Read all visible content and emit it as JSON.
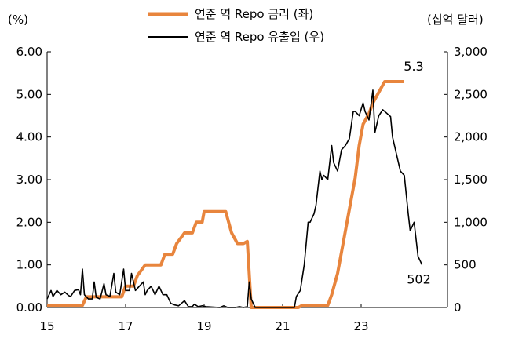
{
  "chart_data": {
    "type": "line",
    "title": "",
    "left_unit": "(%)",
    "right_unit": "(십억 달러)",
    "xlabel": "",
    "ylabel": "",
    "x_tick_labels": [
      "15",
      "17",
      "19",
      "21",
      "23"
    ],
    "x_tick_values": [
      2015,
      2017,
      2019,
      2021,
      2023
    ],
    "xlim": [
      2015,
      2025.2
    ],
    "y_left": {
      "lim": [
        0,
        6
      ],
      "tick_values": [
        0,
        1,
        2,
        3,
        4,
        5,
        6
      ],
      "tick_labels": [
        "0.00",
        "1.00",
        "2.00",
        "3.00",
        "4.00",
        "5.00",
        "6.00"
      ]
    },
    "y_right": {
      "lim": [
        0,
        3000
      ],
      "tick_values": [
        0,
        500,
        1000,
        1500,
        2000,
        2500,
        3000
      ],
      "tick_labels": [
        "0",
        "500",
        "1,000",
        "1,500",
        "2,000",
        "2,500",
        "3,000"
      ]
    },
    "grid": false,
    "legend_position": "top-center",
    "series": [
      {
        "name": "연준 역 Repo 금리 (좌)",
        "axis": "left",
        "color": "#e8853d",
        "points": [
          [
            2015.0,
            0.05
          ],
          [
            2015.9,
            0.05
          ],
          [
            2016.0,
            0.25
          ],
          [
            2016.9,
            0.25
          ],
          [
            2017.0,
            0.5
          ],
          [
            2017.2,
            0.5
          ],
          [
            2017.3,
            0.75
          ],
          [
            2017.5,
            1.0
          ],
          [
            2017.9,
            1.0
          ],
          [
            2018.0,
            1.25
          ],
          [
            2018.2,
            1.25
          ],
          [
            2018.3,
            1.5
          ],
          [
            2018.5,
            1.75
          ],
          [
            2018.7,
            1.75
          ],
          [
            2018.8,
            2.0
          ],
          [
            2018.95,
            2.0
          ],
          [
            2019.0,
            2.25
          ],
          [
            2019.55,
            2.25
          ],
          [
            2019.7,
            1.75
          ],
          [
            2019.85,
            1.5
          ],
          [
            2020.0,
            1.5
          ],
          [
            2020.1,
            1.55
          ],
          [
            2020.2,
            0.0
          ],
          [
            2021.4,
            0.0
          ],
          [
            2021.5,
            0.05
          ],
          [
            2022.15,
            0.05
          ],
          [
            2022.25,
            0.3
          ],
          [
            2022.4,
            0.8
          ],
          [
            2022.55,
            1.55
          ],
          [
            2022.7,
            2.3
          ],
          [
            2022.85,
            3.05
          ],
          [
            2022.95,
            3.8
          ],
          [
            2023.05,
            4.3
          ],
          [
            2023.2,
            4.55
          ],
          [
            2023.3,
            4.8
          ],
          [
            2023.45,
            5.05
          ],
          [
            2023.6,
            5.3
          ],
          [
            2024.1,
            5.3
          ]
        ],
        "annotation": "5.3"
      },
      {
        "name": "연준 역 Repo 유출입 (우)",
        "axis": "right",
        "color": "#000000",
        "points": [
          [
            2015.0,
            100
          ],
          [
            2015.1,
            200
          ],
          [
            2015.15,
            130
          ],
          [
            2015.25,
            200
          ],
          [
            2015.35,
            150
          ],
          [
            2015.45,
            180
          ],
          [
            2015.55,
            140
          ],
          [
            2015.6,
            130
          ],
          [
            2015.7,
            200
          ],
          [
            2015.8,
            210
          ],
          [
            2015.85,
            150
          ],
          [
            2015.9,
            450
          ],
          [
            2015.95,
            150
          ],
          [
            2016.05,
            100
          ],
          [
            2016.15,
            100
          ],
          [
            2016.2,
            300
          ],
          [
            2016.25,
            120
          ],
          [
            2016.35,
            100
          ],
          [
            2016.45,
            280
          ],
          [
            2016.5,
            150
          ],
          [
            2016.6,
            130
          ],
          [
            2016.7,
            400
          ],
          [
            2016.75,
            180
          ],
          [
            2016.85,
            150
          ],
          [
            2016.95,
            450
          ],
          [
            2017.0,
            200
          ],
          [
            2017.1,
            200
          ],
          [
            2017.15,
            400
          ],
          [
            2017.25,
            200
          ],
          [
            2017.35,
            250
          ],
          [
            2017.45,
            300
          ],
          [
            2017.5,
            150
          ],
          [
            2017.55,
            200
          ],
          [
            2017.65,
            250
          ],
          [
            2017.75,
            150
          ],
          [
            2017.85,
            250
          ],
          [
            2017.95,
            150
          ],
          [
            2018.05,
            150
          ],
          [
            2018.15,
            50
          ],
          [
            2018.25,
            30
          ],
          [
            2018.35,
            20
          ],
          [
            2018.5,
            80
          ],
          [
            2018.6,
            10
          ],
          [
            2018.7,
            10
          ],
          [
            2018.75,
            40
          ],
          [
            2018.85,
            10
          ],
          [
            2018.95,
            20
          ],
          [
            2019.05,
            10
          ],
          [
            2019.4,
            0
          ],
          [
            2019.5,
            20
          ],
          [
            2019.6,
            0
          ],
          [
            2019.8,
            0
          ],
          [
            2019.9,
            10
          ],
          [
            2020.0,
            0
          ],
          [
            2020.1,
            10
          ],
          [
            2020.15,
            300
          ],
          [
            2020.2,
            100
          ],
          [
            2020.3,
            0
          ],
          [
            2021.3,
            0
          ],
          [
            2021.35,
            130
          ],
          [
            2021.45,
            200
          ],
          [
            2021.55,
            500
          ],
          [
            2021.65,
            1000
          ],
          [
            2021.7,
            1000
          ],
          [
            2021.8,
            1100
          ],
          [
            2021.85,
            1200
          ],
          [
            2021.95,
            1600
          ],
          [
            2022.0,
            1500
          ],
          [
            2022.05,
            1550
          ],
          [
            2022.15,
            1500
          ],
          [
            2022.25,
            1900
          ],
          [
            2022.3,
            1700
          ],
          [
            2022.4,
            1600
          ],
          [
            2022.5,
            1850
          ],
          [
            2022.6,
            1900
          ],
          [
            2022.7,
            1980
          ],
          [
            2022.8,
            2300
          ],
          [
            2022.85,
            2300
          ],
          [
            2022.95,
            2250
          ],
          [
            2023.05,
            2400
          ],
          [
            2023.1,
            2300
          ],
          [
            2023.2,
            2200
          ],
          [
            2023.3,
            2550
          ],
          [
            2023.35,
            2050
          ],
          [
            2023.45,
            2250
          ],
          [
            2023.55,
            2320
          ],
          [
            2023.65,
            2280
          ],
          [
            2023.75,
            2240
          ],
          [
            2023.8,
            2000
          ],
          [
            2023.9,
            1800
          ],
          [
            2024.0,
            1600
          ],
          [
            2024.1,
            1550
          ],
          [
            2024.2,
            1100
          ],
          [
            2024.25,
            900
          ],
          [
            2024.35,
            1000
          ],
          [
            2024.45,
            600
          ],
          [
            2024.55,
            502
          ]
        ],
        "annotation": "502"
      }
    ]
  }
}
